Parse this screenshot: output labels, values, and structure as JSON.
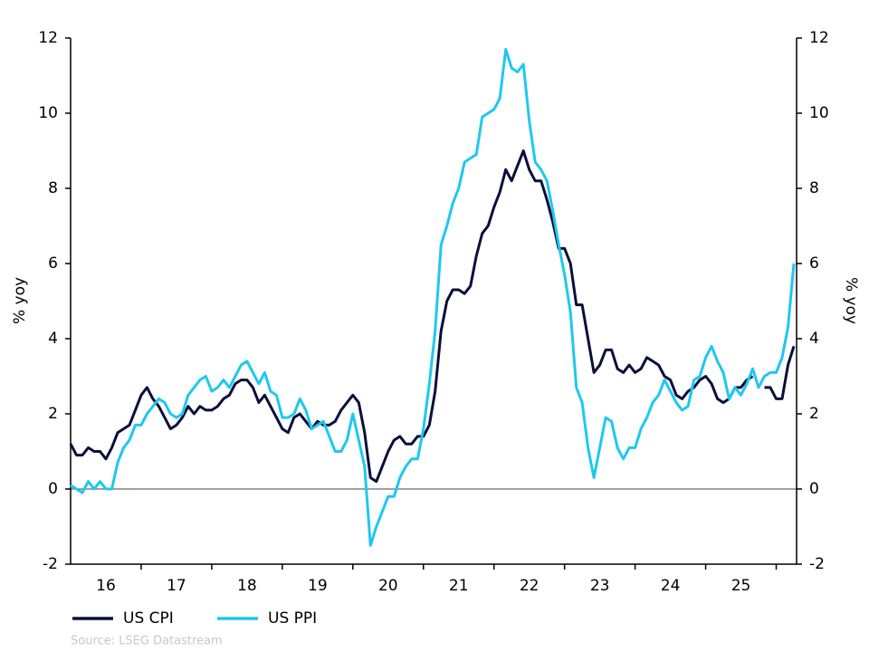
{
  "chart_data": {
    "type": "line",
    "y_label": "% yoy",
    "y2_label": "% yoy",
    "source": "Source: LSEG Datastream",
    "categories": [
      null,
      null,
      null,
      null,
      null,
      null,
      "16",
      null,
      null,
      null,
      null,
      null,
      null,
      null,
      null,
      null,
      null,
      null,
      "17",
      null,
      null,
      null,
      null,
      null,
      null,
      null,
      null,
      null,
      null,
      null,
      "18",
      null,
      null,
      null,
      null,
      null,
      null,
      null,
      null,
      null,
      null,
      null,
      "19",
      null,
      null,
      null,
      null,
      null,
      null,
      null,
      null,
      null,
      null,
      null,
      "20",
      null,
      null,
      null,
      null,
      null,
      null,
      null,
      null,
      null,
      null,
      null,
      "21",
      null,
      null,
      null,
      null,
      null,
      null,
      null,
      null,
      null,
      null,
      null,
      "22",
      null,
      null,
      null,
      null,
      null,
      null,
      null,
      null,
      null,
      null,
      null,
      "23",
      null,
      null,
      null,
      null,
      null,
      null,
      null,
      null,
      null,
      null,
      null,
      "24",
      null,
      null,
      null,
      null,
      null,
      null,
      null,
      null,
      null,
      null,
      null,
      "25",
      null,
      null,
      null,
      null,
      null,
      null,
      null,
      null,
      null
    ],
    "series": [
      {
        "name": "US CPI",
        "color": "#0a0f3c",
        "values": [
          1.2,
          0.9,
          0.9,
          1.1,
          1.0,
          1.0,
          0.8,
          1.1,
          1.5,
          1.6,
          1.7,
          2.1,
          2.5,
          2.7,
          2.4,
          2.2,
          1.9,
          1.6,
          1.7,
          1.9,
          2.2,
          2.0,
          2.2,
          2.1,
          2.1,
          2.2,
          2.4,
          2.5,
          2.8,
          2.9,
          2.9,
          2.7,
          2.3,
          2.5,
          2.2,
          1.9,
          1.6,
          1.5,
          1.9,
          2.0,
          1.8,
          1.6,
          1.8,
          1.7,
          1.7,
          1.8,
          2.1,
          2.3,
          2.5,
          2.3,
          1.5,
          0.3,
          0.2,
          0.6,
          1.0,
          1.3,
          1.4,
          1.2,
          1.2,
          1.4,
          1.4,
          1.7,
          2.6,
          4.2,
          5.0,
          5.3,
          5.3,
          5.2,
          5.4,
          6.2,
          6.8,
          7.0,
          7.5,
          7.9,
          8.5,
          8.2,
          8.6,
          9.0,
          8.5,
          8.2,
          8.2,
          7.7,
          7.1,
          6.4,
          6.4,
          6.0,
          4.9,
          4.9,
          4.0,
          3.1,
          3.3,
          3.7,
          3.7,
          3.2,
          3.1,
          3.3,
          3.1,
          3.2,
          3.5,
          3.4,
          3.3,
          3.0,
          2.9,
          2.5,
          2.4,
          2.6,
          2.7,
          2.9,
          3.0,
          2.8,
          2.4,
          2.3,
          2.4,
          2.7,
          2.7,
          2.9,
          3.0,
          null,
          2.7,
          2.7,
          2.4,
          2.4,
          3.3,
          3.8
        ]
      },
      {
        "name": "US PPI",
        "color": "#1ec8f0",
        "values": [
          0.1,
          0.0,
          -0.1,
          0.2,
          0.0,
          0.2,
          0.0,
          0.0,
          0.7,
          1.1,
          1.3,
          1.7,
          1.7,
          2.0,
          2.2,
          2.4,
          2.3,
          2.0,
          1.9,
          2.0,
          2.5,
          2.7,
          2.9,
          3.0,
          2.6,
          2.7,
          2.9,
          2.7,
          3.0,
          3.3,
          3.4,
          3.1,
          2.8,
          3.1,
          2.6,
          2.5,
          1.9,
          1.9,
          2.0,
          2.4,
          2.1,
          1.6,
          1.7,
          1.8,
          1.4,
          1.0,
          1.0,
          1.3,
          2.0,
          1.3,
          0.6,
          -1.5,
          -1.0,
          -0.6,
          -0.2,
          -0.2,
          0.3,
          0.6,
          0.8,
          0.8,
          1.6,
          2.8,
          4.2,
          6.5,
          7.0,
          7.6,
          8.0,
          8.7,
          8.8,
          8.9,
          9.9,
          10.0,
          10.1,
          10.4,
          11.7,
          11.2,
          11.1,
          11.3,
          9.8,
          8.7,
          8.5,
          8.2,
          7.4,
          6.5,
          5.7,
          4.7,
          2.7,
          2.3,
          1.1,
          0.3,
          1.1,
          1.9,
          1.8,
          1.1,
          0.8,
          1.1,
          1.1,
          1.6,
          1.9,
          2.3,
          2.5,
          2.9,
          2.6,
          2.3,
          2.1,
          2.2,
          2.9,
          3.0,
          3.5,
          3.8,
          3.4,
          3.1,
          2.4,
          2.7,
          2.5,
          2.8,
          3.2,
          2.7,
          3.0,
          3.1,
          3.1,
          3.5,
          4.3,
          6.0
        ]
      }
    ],
    "ylim": [
      -2,
      12
    ],
    "yticks": [
      -2,
      0,
      2,
      4,
      6,
      8,
      10,
      12
    ],
    "y2lim": [
      -2,
      12
    ],
    "y2ticks": [
      -2,
      0,
      2,
      4,
      6,
      8,
      10,
      12
    ],
    "zero_line": true
  }
}
